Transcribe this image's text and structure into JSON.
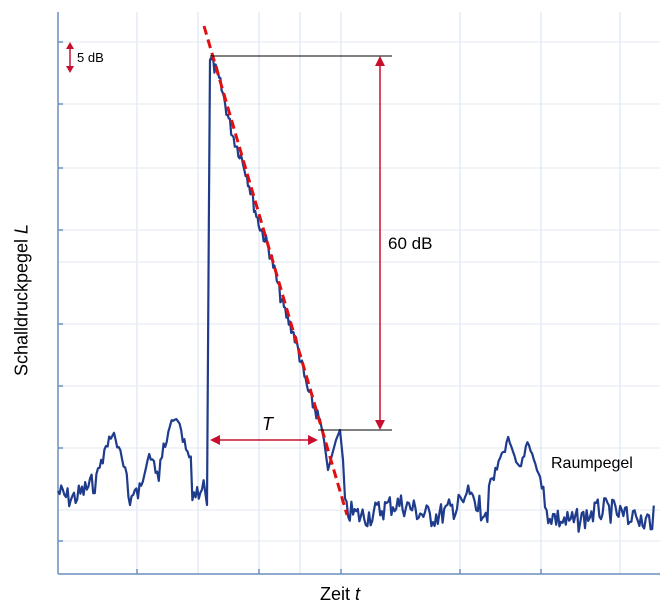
{
  "axes": {
    "y_label_text": "Schalldruckpegel ",
    "y_label_symbol": "L",
    "x_label_text": "Zeit ",
    "x_label_symbol": "t",
    "grid": true
  },
  "annotations": {
    "scale_bar": "5 dB",
    "level_drop": "60 dB",
    "reverberation_time": "T",
    "background_level": "Raumpegel"
  },
  "colors": {
    "signal": "#1f3c8c",
    "slope": "#e01010",
    "annotation_arrow": "#c8102e",
    "grid": "#d6e2f0",
    "axis": "#6c8ebf"
  },
  "chart_data": {
    "type": "line",
    "title": "",
    "xlabel": "Zeit t",
    "ylabel": "Schalldruckpegel L",
    "y_unit": "dB",
    "series": [
      {
        "values": []
      }
    ]
  }
}
